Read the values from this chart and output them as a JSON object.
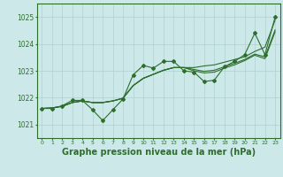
{
  "background_color": "#cce8e8",
  "grid_color": "#b0d0d0",
  "line_color": "#2d6e2d",
  "xlabel": "Graphe pression niveau de la mer (hPa)",
  "xlabel_fontsize": 7,
  "xlim": [
    -0.5,
    23.5
  ],
  "ylim": [
    1020.5,
    1025.5
  ],
  "yticks": [
    1021,
    1022,
    1023,
    1024,
    1025
  ],
  "xticks": [
    0,
    1,
    2,
    3,
    4,
    5,
    6,
    7,
    8,
    9,
    10,
    11,
    12,
    13,
    14,
    15,
    16,
    17,
    18,
    19,
    20,
    21,
    22,
    23
  ],
  "y_smooth1": [
    1021.6,
    1021.62,
    1021.68,
    1021.82,
    1021.88,
    1021.82,
    1021.82,
    1021.88,
    1021.98,
    1022.45,
    1022.72,
    1022.87,
    1023.02,
    1023.12,
    1023.12,
    1023.12,
    1023.18,
    1023.22,
    1023.32,
    1023.42,
    1023.52,
    1023.72,
    1023.88,
    1024.88
  ],
  "y_smooth2": [
    1021.6,
    1021.62,
    1021.68,
    1021.82,
    1021.88,
    1021.82,
    1021.82,
    1021.88,
    1021.98,
    1022.45,
    1022.72,
    1022.87,
    1023.02,
    1023.12,
    1023.12,
    1023.05,
    1022.98,
    1023.02,
    1023.15,
    1023.28,
    1023.42,
    1023.62,
    1023.52,
    1024.52
  ],
  "y_smooth3": [
    1021.6,
    1021.62,
    1021.68,
    1021.82,
    1021.88,
    1021.82,
    1021.82,
    1021.88,
    1021.98,
    1022.45,
    1022.72,
    1022.87,
    1023.02,
    1023.12,
    1023.12,
    1023.0,
    1022.92,
    1022.95,
    1023.1,
    1023.22,
    1023.38,
    1023.58,
    1023.45,
    1024.45
  ],
  "y_markers": [
    1021.6,
    1021.6,
    1021.7,
    1021.9,
    1021.9,
    1021.55,
    1021.15,
    1021.55,
    1021.95,
    1022.85,
    1023.2,
    1023.1,
    1023.35,
    1023.35,
    1023.0,
    1022.95,
    1022.6,
    1022.65,
    1023.15,
    1023.35,
    1023.6,
    1024.4,
    1023.6,
    1025.0
  ]
}
